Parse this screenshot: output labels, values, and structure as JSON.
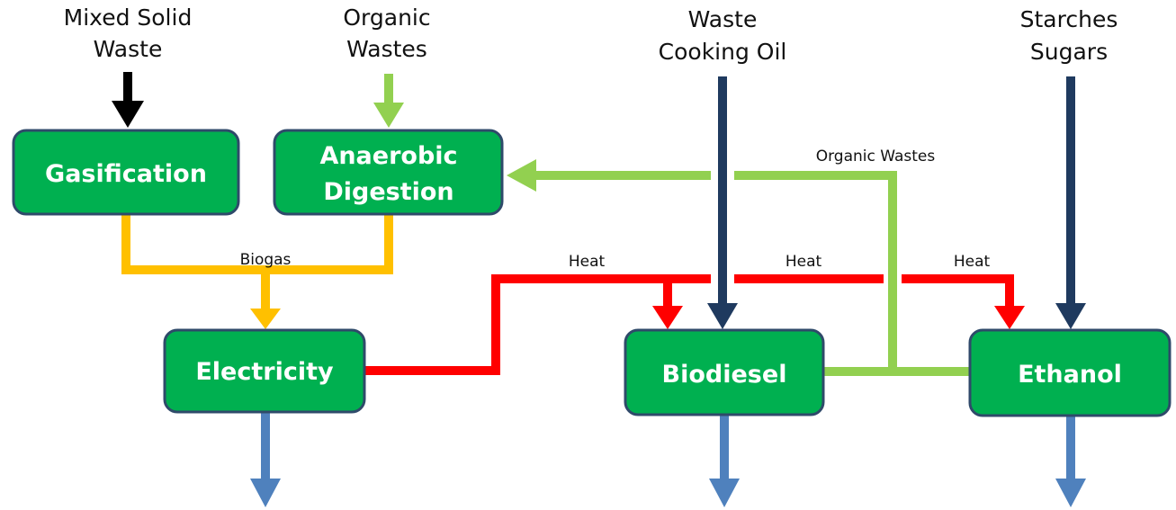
{
  "inputs": [
    {
      "lines": [
        "Mixed Solid",
        "Waste"
      ]
    },
    {
      "lines": [
        "Organic",
        "Wastes"
      ]
    },
    {
      "lines": [
        "Waste",
        "Cooking Oil"
      ]
    },
    {
      "lines": [
        "Starches",
        "Sugars"
      ]
    }
  ],
  "nodes": [
    {
      "lines": [
        "Gasification"
      ]
    },
    {
      "lines": [
        "Anaerobic",
        "Digestion"
      ]
    },
    {
      "lines": [
        "Electricity"
      ]
    },
    {
      "lines": [
        "Biodiesel"
      ]
    },
    {
      "lines": [
        "Ethanol"
      ]
    }
  ],
  "edge_labels": [
    "Biogas",
    "Heat",
    "Heat",
    "Heat",
    "Organic Wastes"
  ]
}
